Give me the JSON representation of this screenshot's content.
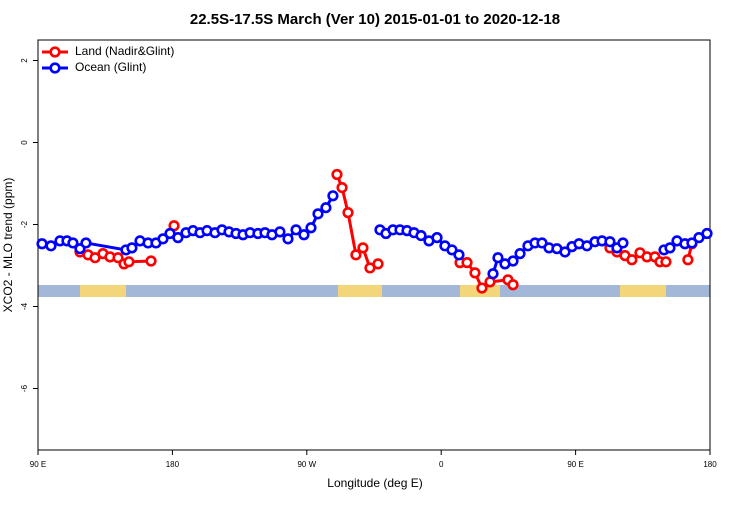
{
  "chart_data": {
    "type": "line",
    "title": "22.5S-17.5S March (Ver 10)   2015-01-01 to 2020-12-18",
    "x_label": "Longitude (deg E)",
    "y_label": "XCO2 - MLO trend (ppm)",
    "xlim": [
      90,
      540
    ],
    "ylim": [
      -7.5,
      2.5
    ],
    "xticks": [
      {
        "value": 90,
        "label": "90 E"
      },
      180,
      {
        "value": 270,
        "label": "90 W"
      },
      {
        "value": 360,
        "label": "0"
      },
      {
        "value": 450,
        "label": "90 E"
      },
      {
        "value": 540,
        "label": "180"
      }
    ],
    "yticks": [
      -6,
      -4,
      -2,
      0,
      2
    ],
    "grid": false,
    "legend": "top-left",
    "series": [
      {
        "name": "Land (Nadir&Glint)",
        "color": "#ff0000",
        "x": [
          118.1,
          123.5,
          128.2,
          133.5,
          138.2,
          143.6,
          147.6,
          150.9,
          165.7,
          173,
          181.1,
          240,
          290.2,
          293.6,
          297.6,
          302.9,
          307.6,
          312.3,
          317.7,
          345,
          372.6,
          377.3,
          382.6,
          387.3,
          392.7,
          404.7,
          408.1,
          440,
          473.0,
          477.7,
          483.1,
          487.7,
          493.1,
          497.8,
          503.1,
          506.5,
          510.5,
          518,
          525.2,
          527.9
        ],
        "values": [
          -2.67,
          -2.74,
          -2.81,
          -2.71,
          -2.79,
          -2.81,
          -2.96,
          -2.91,
          -2.89,
          null,
          -2.03,
          null,
          -0.78,
          -1.1,
          -1.71,
          -2.74,
          -2.57,
          -3.06,
          -2.96,
          null,
          -2.93,
          -2.93,
          -3.18,
          -3.55,
          -3.4,
          -3.35,
          -3.47,
          null,
          -2.57,
          -2.67,
          -2.76,
          -2.86,
          -2.69,
          -2.79,
          -2.79,
          -2.91,
          -2.91,
          null,
          -2.86,
          -2.47
        ]
      },
      {
        "name": "Ocean (Glint)",
        "color": "#0000ff",
        "x": [
          92.7,
          98.7,
          104.7,
          109.4,
          113.4,
          118.1,
          122.1,
          148.9,
          152.9,
          158.3,
          163.7,
          169.0,
          173.7,
          178.4,
          183.7,
          189.1,
          193.8,
          198.5,
          203.2,
          208.5,
          213.2,
          217.9,
          222.6,
          227.3,
          232.0,
          237.3,
          242.0,
          246.7,
          252.0,
          257.4,
          262.8,
          268.1,
          272.8,
          277.5,
          282.8,
          287.5,
          303,
          319.0,
          323.0,
          327.7,
          332.4,
          337.1,
          341.8,
          346.5,
          351.8,
          357.2,
          362.5,
          367.2,
          371.9,
          383,
          394.7,
          398.0,
          402.7,
          408.1,
          412.8,
          418.1,
          422.8,
          427.5,
          432.2,
          437.5,
          442.9,
          447.6,
          452.3,
          457.6,
          463.0,
          467.7,
          473.0,
          477.7,
          481.7,
          495,
          509.2,
          513.2,
          517.9,
          523.2,
          527.9,
          532.6,
          538.0
        ],
        "values": [
          -2.47,
          -2.52,
          -2.4,
          -2.4,
          -2.45,
          -2.59,
          -2.45,
          -2.62,
          -2.57,
          -2.4,
          -2.45,
          -2.45,
          -2.35,
          -2.22,
          -2.32,
          -2.2,
          -2.15,
          -2.2,
          -2.15,
          -2.2,
          -2.13,
          -2.18,
          -2.22,
          -2.25,
          -2.2,
          -2.22,
          -2.2,
          -2.25,
          -2.18,
          -2.35,
          -2.13,
          -2.25,
          -2.08,
          -1.74,
          -1.59,
          -1.3,
          null,
          -2.13,
          -2.22,
          -2.13,
          -2.13,
          -2.15,
          -2.2,
          -2.27,
          -2.4,
          -2.32,
          -2.52,
          -2.62,
          -2.74,
          null,
          -3.2,
          -2.81,
          -2.96,
          -2.89,
          -2.71,
          -2.52,
          -2.45,
          -2.45,
          -2.57,
          -2.59,
          -2.67,
          -2.54,
          -2.47,
          -2.52,
          -2.42,
          -2.4,
          -2.42,
          -2.57,
          -2.45,
          null,
          -2.62,
          -2.57,
          -2.4,
          -2.47,
          -2.45,
          -2.32,
          -2.22
        ]
      }
    ]
  }
}
